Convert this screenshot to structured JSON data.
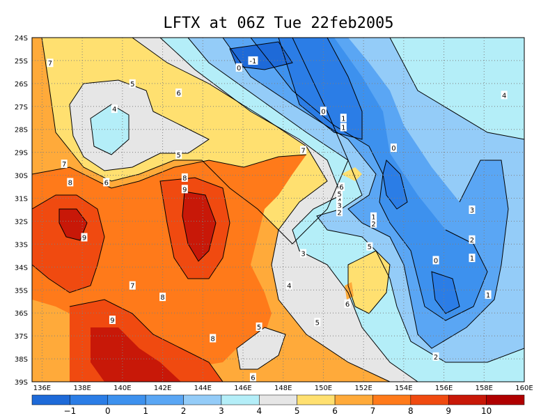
{
  "chart_data": {
    "type": "heatmap",
    "title": "LFTX at 06Z Tue 22feb2005",
    "variable": "LFTX",
    "x_range": [
      135.5,
      160
    ],
    "y_range": [
      -39,
      -24
    ],
    "x_ticks": [
      "136E",
      "138E",
      "140E",
      "142E",
      "144E",
      "146E",
      "148E",
      "150E",
      "152E",
      "154E",
      "156E",
      "158E",
      "160E"
    ],
    "y_ticks": [
      "24S",
      "25S",
      "26S",
      "27S",
      "28S",
      "29S",
      "30S",
      "31S",
      "32S",
      "33S",
      "34S",
      "35S",
      "36S",
      "37S",
      "38S",
      "39S"
    ],
    "grid": true,
    "colorbar": {
      "placement": "bottom",
      "labels": [
        "−1",
        "0",
        "1",
        "2",
        "3",
        "4",
        "5",
        "6",
        "7",
        "8",
        "9",
        "10"
      ],
      "colors": [
        "#1e6ad8",
        "#2b7de6",
        "#3d91ee",
        "#5aa6f4",
        "#94ccf8",
        "#b4eef8",
        "#e6e6e6",
        "#ffe070",
        "#ffaa3a",
        "#ff7a1a",
        "#f04a10",
        "#c81808",
        "#b00000"
      ]
    },
    "contour_labels": [
      {
        "text": "7",
        "x": 136.4,
        "y": -25.1
      },
      {
        "text": "7",
        "x": 137.1,
        "y": -29.5
      },
      {
        "text": "8",
        "x": 137.4,
        "y": -30.3
      },
      {
        "text": "9",
        "x": 138.1,
        "y": -32.7
      },
      {
        "text": "6",
        "x": 139.2,
        "y": -30.3
      },
      {
        "text": "5",
        "x": 140.5,
        "y": -26.0
      },
      {
        "text": "4",
        "x": 139.6,
        "y": -27.1
      },
      {
        "text": "6",
        "x": 142.8,
        "y": -26.4
      },
      {
        "text": "5",
        "x": 142.8,
        "y": -29.1
      },
      {
        "text": "7",
        "x": 140.5,
        "y": -34.8
      },
      {
        "text": "9",
        "x": 139.5,
        "y": -36.3
      },
      {
        "text": "8",
        "x": 143.1,
        "y": -30.1
      },
      {
        "text": "9",
        "x": 143.1,
        "y": -30.6
      },
      {
        "text": "8",
        "x": 142.0,
        "y": -35.3
      },
      {
        "text": "8",
        "x": 144.5,
        "y": -37.1
      },
      {
        "text": "7",
        "x": 149.0,
        "y": -28.9
      },
      {
        "text": "-1",
        "x": 146.5,
        "y": -25.0
      },
      {
        "text": "0",
        "x": 145.8,
        "y": -25.3
      },
      {
        "text": "0",
        "x": 150.0,
        "y": -27.2
      },
      {
        "text": "1",
        "x": 151.0,
        "y": -27.5
      },
      {
        "text": "1",
        "x": 151.0,
        "y": -27.9
      },
      {
        "text": "0",
        "x": 153.5,
        "y": -28.8
      },
      {
        "text": "6",
        "x": 150.9,
        "y": -30.5
      },
      {
        "text": "5",
        "x": 150.8,
        "y": -30.8
      },
      {
        "text": "4",
        "x": 150.8,
        "y": -31.1
      },
      {
        "text": "3",
        "x": 150.8,
        "y": -31.3
      },
      {
        "text": "2",
        "x": 150.8,
        "y": -31.6
      },
      {
        "text": "1",
        "x": 152.5,
        "y": -31.8
      },
      {
        "text": "2",
        "x": 152.5,
        "y": -32.1
      },
      {
        "text": "5",
        "x": 152.3,
        "y": -33.1
      },
      {
        "text": "3",
        "x": 149.0,
        "y": -33.4
      },
      {
        "text": "4",
        "x": 148.3,
        "y": -34.8
      },
      {
        "text": "5",
        "x": 149.7,
        "y": -36.4
      },
      {
        "text": "6",
        "x": 151.2,
        "y": -35.6
      },
      {
        "text": "5",
        "x": 146.8,
        "y": -36.6
      },
      {
        "text": "6",
        "x": 146.5,
        "y": -38.8
      },
      {
        "text": "0",
        "x": 155.6,
        "y": -33.7
      },
      {
        "text": "1",
        "x": 157.4,
        "y": -33.6
      },
      {
        "text": "2",
        "x": 157.4,
        "y": -32.8
      },
      {
        "text": "3",
        "x": 157.4,
        "y": -31.5
      },
      {
        "text": "1",
        "x": 158.2,
        "y": -35.2
      },
      {
        "text": "2",
        "x": 155.6,
        "y": -37.9
      },
      {
        "text": "4",
        "x": 159.0,
        "y": -26.5
      }
    ]
  }
}
